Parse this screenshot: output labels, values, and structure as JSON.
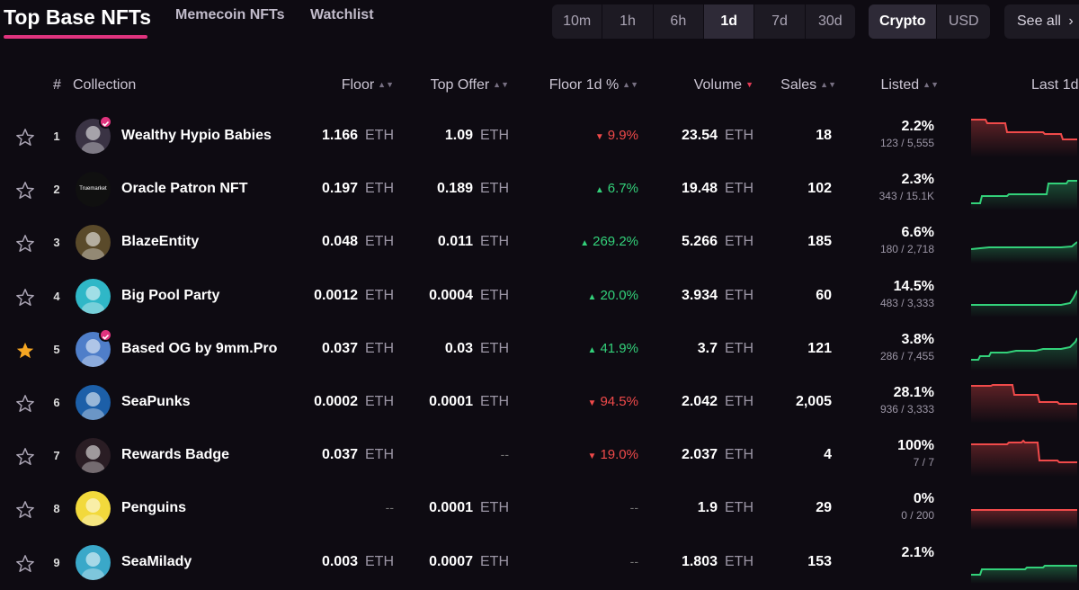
{
  "nav": {
    "tabs": [
      "Top Base NFTs",
      "Memecoin NFTs",
      "Watchlist"
    ],
    "time_ranges": [
      "10m",
      "1h",
      "6h",
      "1d",
      "7d",
      "30d"
    ],
    "active_time_range": "1d",
    "currency": [
      "Crypto",
      "USD"
    ],
    "active_currency": "Crypto",
    "see_all": "See all"
  },
  "table": {
    "headers": {
      "rank": "#",
      "collection": "Collection",
      "floor": "Floor",
      "top_offer": "Top Offer",
      "floor_change": "Floor 1d %",
      "volume": "Volume",
      "sales": "Sales",
      "listed": "Listed",
      "last": "Last 1d"
    },
    "rows": [
      {
        "rank": "1",
        "name": "Wealthy Hypio Babies",
        "floor": "1.166",
        "floor_unit": "ETH",
        "top_offer": "1.09",
        "top_offer_unit": "ETH",
        "change": "9.9%",
        "direction": "down",
        "volume": "23.54",
        "volume_unit": "ETH",
        "sales": "18",
        "listed_pct": "2.2%",
        "listed_count": "123 / 5,555",
        "starred": false,
        "verified": true
      },
      {
        "rank": "2",
        "name": "Oracle Patron NFT",
        "floor": "0.197",
        "floor_unit": "ETH",
        "top_offer": "0.189",
        "top_offer_unit": "ETH",
        "change": "6.7%",
        "direction": "up",
        "volume": "19.48",
        "volume_unit": "ETH",
        "sales": "102",
        "listed_pct": "2.3%",
        "listed_count": "343 / 15.1K",
        "starred": false,
        "verified": false,
        "avatar_text": "Truemarket"
      },
      {
        "rank": "3",
        "name": "BlazeEntity",
        "floor": "0.048",
        "floor_unit": "ETH",
        "top_offer": "0.011",
        "top_offer_unit": "ETH",
        "change": "269.2%",
        "direction": "up",
        "volume": "5.266",
        "volume_unit": "ETH",
        "sales": "185",
        "listed_pct": "6.6%",
        "listed_count": "180 / 2,718",
        "starred": false,
        "verified": false
      },
      {
        "rank": "4",
        "name": "Big Pool Party",
        "floor": "0.0012",
        "floor_unit": "ETH",
        "top_offer": "0.0004",
        "top_offer_unit": "ETH",
        "change": "20.0%",
        "direction": "up",
        "volume": "3.934",
        "volume_unit": "ETH",
        "sales": "60",
        "listed_pct": "14.5%",
        "listed_count": "483 / 3,333",
        "starred": false,
        "verified": false
      },
      {
        "rank": "5",
        "name": "Based OG by 9mm.Pro",
        "floor": "0.037",
        "floor_unit": "ETH",
        "top_offer": "0.03",
        "top_offer_unit": "ETH",
        "change": "41.9%",
        "direction": "up",
        "volume": "3.7",
        "volume_unit": "ETH",
        "sales": "121",
        "listed_pct": "3.8%",
        "listed_count": "286 / 7,455",
        "starred": true,
        "verified": true
      },
      {
        "rank": "6",
        "name": "SeaPunks",
        "floor": "0.0002",
        "floor_unit": "ETH",
        "top_offer": "0.0001",
        "top_offer_unit": "ETH",
        "change": "94.5%",
        "direction": "down",
        "volume": "2.042",
        "volume_unit": "ETH",
        "sales": "2,005",
        "listed_pct": "28.1%",
        "listed_count": "936 / 3,333",
        "starred": false,
        "verified": false
      },
      {
        "rank": "7",
        "name": "Rewards Badge",
        "floor": "0.037",
        "floor_unit": "ETH",
        "top_offer": "--",
        "top_offer_unit": "",
        "change": "19.0%",
        "direction": "down",
        "volume": "2.037",
        "volume_unit": "ETH",
        "sales": "4",
        "listed_pct": "100%",
        "listed_count": "7 / 7",
        "starred": false,
        "verified": false
      },
      {
        "rank": "8",
        "name": "Penguins",
        "floor": "--",
        "floor_unit": "",
        "top_offer": "0.0001",
        "top_offer_unit": "ETH",
        "change": "--",
        "direction": "none",
        "volume": "1.9",
        "volume_unit": "ETH",
        "sales": "29",
        "listed_pct": "0%",
        "listed_count": "0 / 200",
        "starred": false,
        "verified": false
      },
      {
        "rank": "9",
        "name": "SeaMilady",
        "floor": "0.003",
        "floor_unit": "ETH",
        "top_offer": "0.0007",
        "top_offer_unit": "ETH",
        "change": "--",
        "direction": "none",
        "volume": "1.803",
        "volume_unit": "ETH",
        "sales": "153",
        "listed_pct": "2.1%",
        "listed_count": "",
        "starred": false,
        "verified": false
      }
    ]
  },
  "colors": {
    "accent": "#e0337e",
    "up": "#33d17a",
    "down": "#f04a4a",
    "star": "#f5a623"
  }
}
